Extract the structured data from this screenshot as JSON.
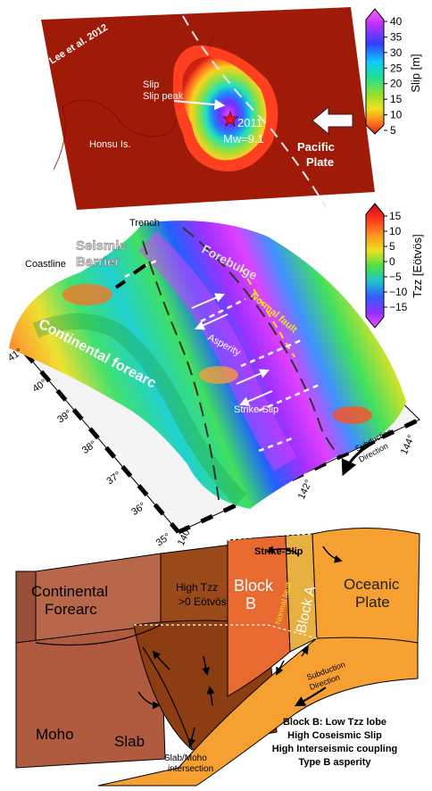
{
  "slip_map": {
    "citation": "Lee et al. 2012",
    "slip_peak_label": "Slip peak",
    "event_year": "2011",
    "magnitude": "Mw=9.1",
    "island_label": "Honsu Is.",
    "plate_label_line1": "Pacific",
    "plate_label_line2": "Plate"
  },
  "slip_scale": {
    "title": "Slip [m]",
    "ticks": [
      "40",
      "35",
      "30",
      "25",
      "20",
      "15",
      "10",
      "5"
    ],
    "colors": [
      "#e040ff",
      "#a030ff",
      "#3050ff",
      "#18c8ff",
      "#20e0a0",
      "#80e040",
      "#e8e820",
      "#ffa020",
      "#ff3020",
      "#9a1000"
    ]
  },
  "tzz_map": {
    "trench_label": "Trench",
    "barrier_line1": "Seismic",
    "barrier_line2": "Barrier",
    "coastline_label": "Coastline",
    "forebulge_label": "Forebulge",
    "forearc_label": "Continental forearc",
    "normal_fault_label": "Normal fault",
    "asperity_label": "Asperity",
    "strike_slip_label": "Strike-Slip",
    "subduction_line1": "Subduction",
    "subduction_line2": "Direction",
    "lat_ticks": [
      "41°",
      "40°",
      "39°",
      "38°",
      "37°",
      "36°",
      "35°"
    ],
    "lon_ticks": [
      "140°",
      "142°",
      "144°"
    ]
  },
  "tzz_scale": {
    "title": "Tzz [Eötvös]",
    "ticks": [
      "15",
      "10",
      "5",
      "0",
      "−5",
      "−10",
      "−15"
    ],
    "colors": [
      "#b01010",
      "#ff3020",
      "#ff9020",
      "#f0e020",
      "#60e040",
      "#20c8c0",
      "#3060ff",
      "#9030ff",
      "#e040ff"
    ]
  },
  "block_diagram": {
    "forearc_line1": "Continental",
    "forearc_line2": "Forearc",
    "high_tzz_line1": "High Tzz",
    "high_tzz_line2": ">0 Eötvös",
    "block_b_line1": "Block",
    "block_b_line2": "B",
    "normal_fault_label": "Normal fault",
    "block_a_label": "Block A",
    "oceanic_line1": "Oceanic",
    "oceanic_line2": "Plate",
    "strike_slip_label": "Strike-Slip",
    "subduction_line1": "Subduction",
    "subduction_line2": "Direction",
    "moho_label": "Moho",
    "slab_label": "Slab",
    "intersection_line1": "Slab/Moho",
    "intersection_line2": "intersection",
    "summary": [
      "Block B: Low Tzz lobe",
      "High Coseismic Slip",
      "High Interseismic coupling",
      "Type B asperity"
    ]
  }
}
